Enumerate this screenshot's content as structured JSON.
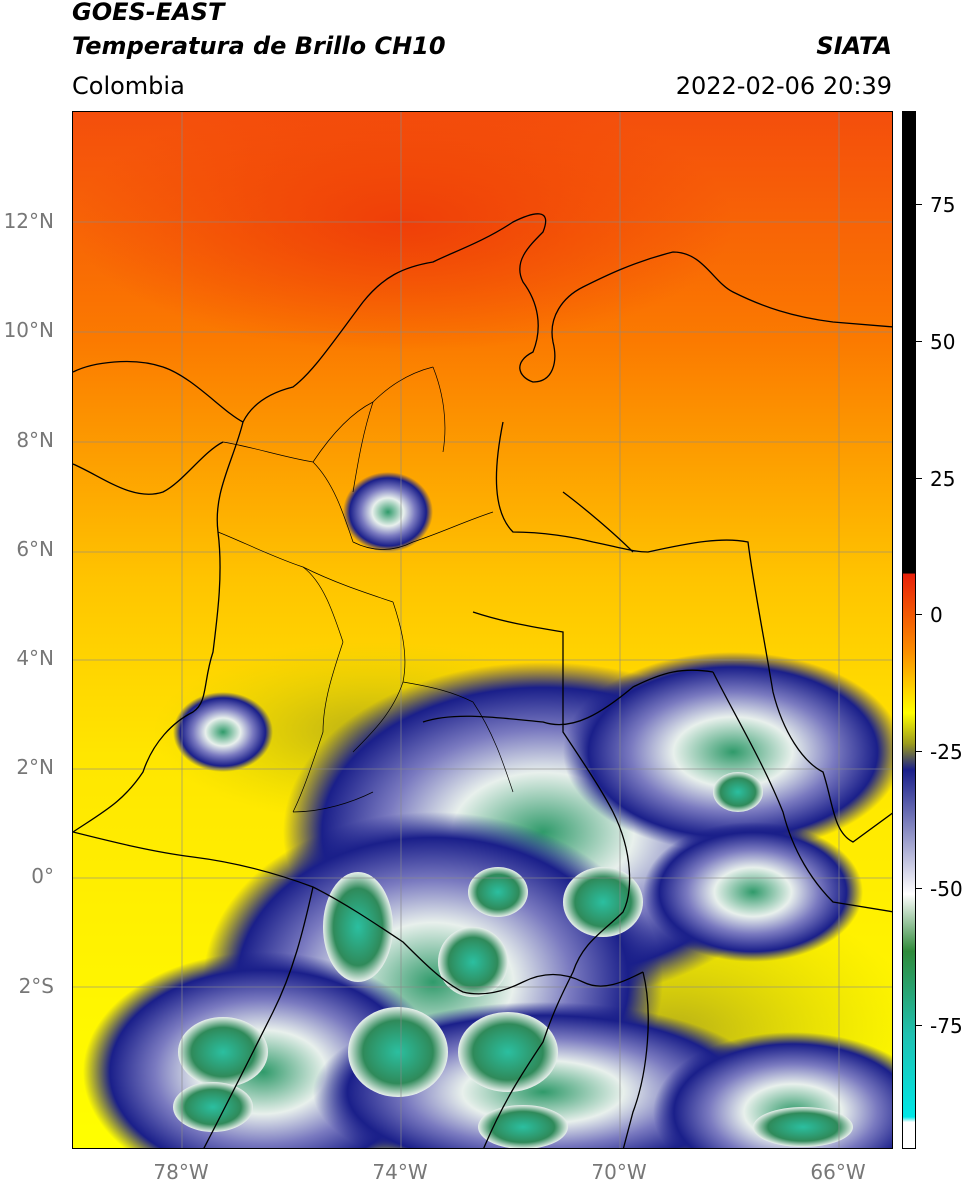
{
  "header": {
    "satellite": "GOES-EAST",
    "product": "Temperatura de Brillo CH10",
    "region": "Colombia",
    "source": "SIATA",
    "datetime": "2022-02-06 20:39"
  },
  "map": {
    "lat_ticks": [
      "12°N",
      "10°N",
      "8°N",
      "6°N",
      "4°N",
      "2°N",
      "0°",
      "2°S"
    ],
    "lon_ticks": [
      "78°W",
      "74°W",
      "70°W",
      "66°W"
    ]
  },
  "colorbar": {
    "ticks": [
      "75",
      "50",
      "25",
      "0",
      "-25",
      "-50",
      "-75"
    ],
    "colors": {
      "black": "#000000",
      "red": "#e8200a",
      "orange": "#fb8c00",
      "yellow": "#ffff00",
      "olive": "#9a9a1e",
      "navy": "#1a1f8a",
      "white": "#ffffff",
      "green": "#2f8a3a",
      "teal": "#20c0b0",
      "cyan": "#00e6e6"
    }
  }
}
